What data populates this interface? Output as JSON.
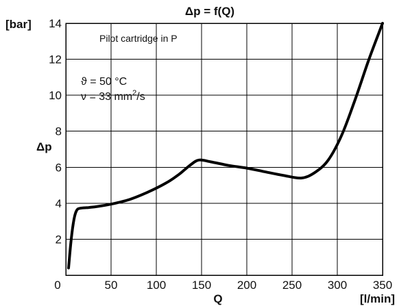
{
  "chart_data": {
    "type": "line",
    "title": "Δp = f(Q)",
    "xlabel": "Q",
    "xunit": "[l/min]",
    "ylabel": "Δp",
    "yunit": "[bar]",
    "xlim": [
      0,
      350
    ],
    "ylim": [
      0,
      14
    ],
    "xticks": [
      0,
      50,
      100,
      150,
      200,
      250,
      300,
      350
    ],
    "yticks": [
      2,
      4,
      6,
      8,
      10,
      12,
      14
    ],
    "grid": true,
    "annotations": {
      "note": "Pilot cartridge in P",
      "temperature": "ϑ = 50 °C",
      "viscosity_prefix": "ν = 33 mm",
      "viscosity_exp": "2",
      "viscosity_suffix": "/s"
    },
    "series": [
      {
        "points": [
          [
            3,
            0.4
          ],
          [
            6,
            2.0
          ],
          [
            9,
            3.1
          ],
          [
            12,
            3.6
          ],
          [
            16,
            3.72
          ],
          [
            25,
            3.76
          ],
          [
            35,
            3.82
          ],
          [
            50,
            3.95
          ],
          [
            70,
            4.2
          ],
          [
            90,
            4.6
          ],
          [
            110,
            5.1
          ],
          [
            125,
            5.6
          ],
          [
            137,
            6.1
          ],
          [
            147,
            6.4
          ],
          [
            160,
            6.3
          ],
          [
            180,
            6.1
          ],
          [
            200,
            5.95
          ],
          [
            220,
            5.75
          ],
          [
            240,
            5.55
          ],
          [
            260,
            5.4
          ],
          [
            275,
            5.7
          ],
          [
            290,
            6.4
          ],
          [
            305,
            7.8
          ],
          [
            320,
            9.8
          ],
          [
            335,
            12.0
          ],
          [
            350,
            14.0
          ]
        ]
      }
    ]
  }
}
